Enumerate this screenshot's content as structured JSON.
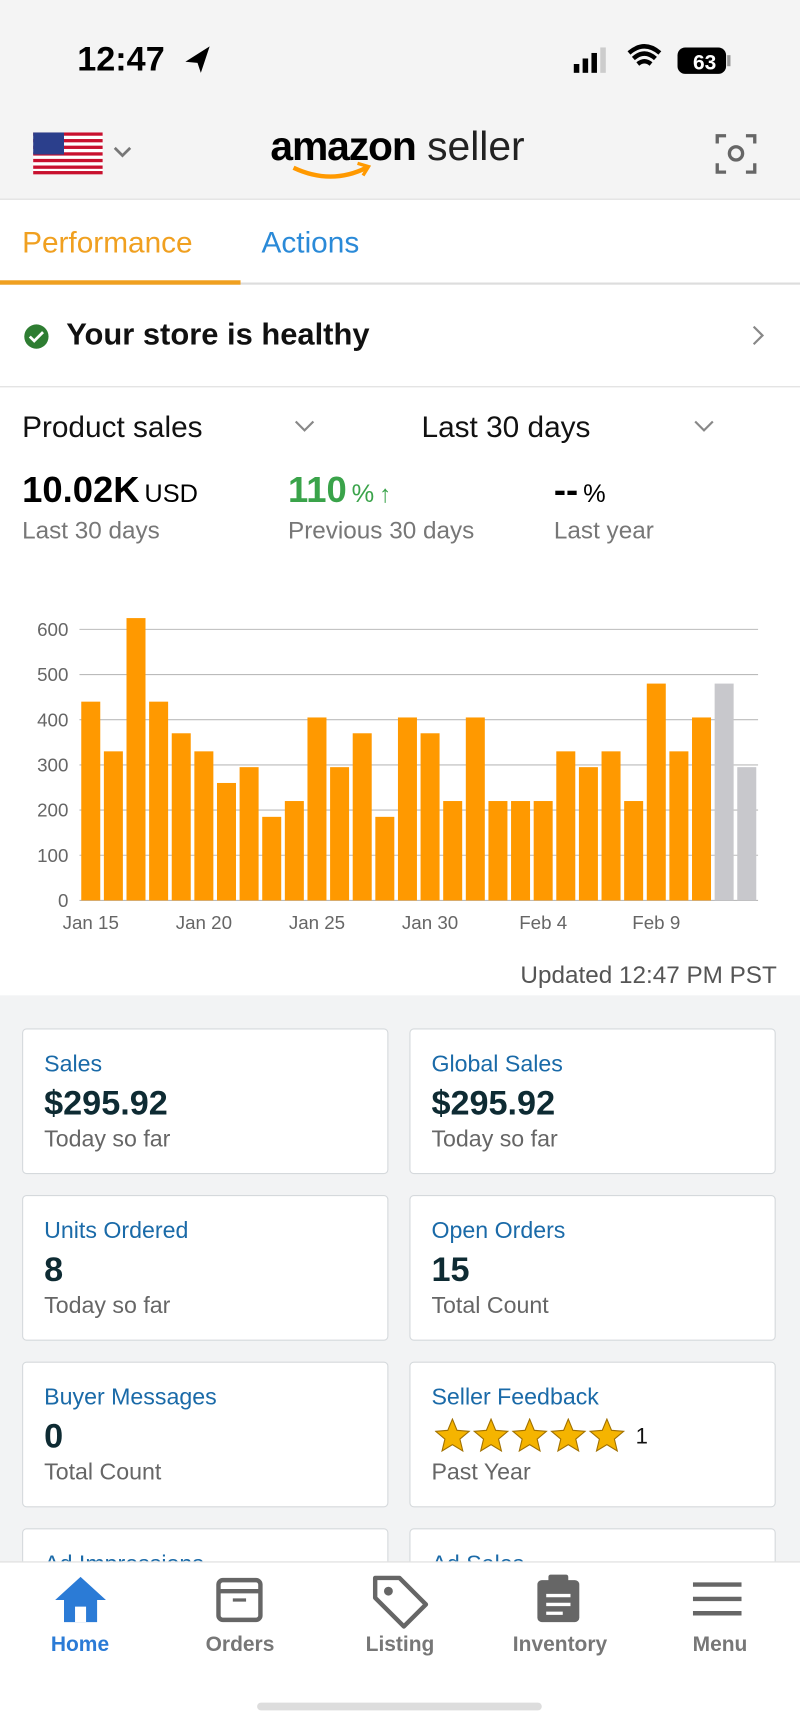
{
  "status_bar": {
    "time": "12:47",
    "battery": "63"
  },
  "header": {
    "logo": "amazon",
    "logo_suffix": "seller"
  },
  "tabs": [
    "Performance",
    "Actions"
  ],
  "health": "Your store is healthy",
  "filters": {
    "metric": "Product sales",
    "period": "Last 30 days"
  },
  "stats": [
    {
      "value": "10.02K",
      "unit": "USD",
      "label": "Last 30 days"
    },
    {
      "value": "110",
      "unit": "%",
      "label": "Previous 30 days"
    },
    {
      "value": "--",
      "unit": "%",
      "label": "Last year"
    }
  ],
  "chart_data": {
    "type": "bar",
    "categories": [
      "Jan 15",
      null,
      null,
      null,
      null,
      "Jan 20",
      null,
      null,
      null,
      null,
      "Jan 25",
      null,
      null,
      null,
      null,
      "Jan 30",
      null,
      null,
      null,
      null,
      "Feb 4",
      null,
      null,
      null,
      null,
      "Feb 9",
      null,
      null,
      null,
      null
    ],
    "values": [
      440,
      330,
      625,
      440,
      370,
      330,
      260,
      295,
      185,
      220,
      405,
      295,
      370,
      185,
      405,
      370,
      220,
      405,
      220,
      220,
      220,
      330,
      295,
      330,
      220,
      480,
      330,
      405,
      480,
      295
    ],
    "colors": [
      "#ff9900",
      "#ff9900",
      "#ff9900",
      "#ff9900",
      "#ff9900",
      "#ff9900",
      "#ff9900",
      "#ff9900",
      "#ff9900",
      "#ff9900",
      "#ff9900",
      "#ff9900",
      "#ff9900",
      "#ff9900",
      "#ff9900",
      "#ff9900",
      "#ff9900",
      "#ff9900",
      "#ff9900",
      "#ff9900",
      "#ff9900",
      "#ff9900",
      "#ff9900",
      "#ff9900",
      "#ff9900",
      "#ff9900",
      "#ff9900",
      "#ff9900",
      "#c8c8cc",
      "#c8c8cc"
    ],
    "ylim": [
      0,
      640
    ],
    "yticks": [
      0,
      100,
      200,
      300,
      400,
      500,
      600
    ],
    "grid": true
  },
  "updated": "Updated 12:47 PM PST",
  "cards": [
    {
      "title": "Sales",
      "value": "$295.92",
      "note": "Today so far"
    },
    {
      "title": "Global Sales",
      "value": "$295.92",
      "note": "Today so far"
    },
    {
      "title": "Units Ordered",
      "value": "8",
      "note": "Today so far"
    },
    {
      "title": "Open Orders",
      "value": "15",
      "note": "Total Count"
    },
    {
      "title": "Buyer Messages",
      "value": "0",
      "note": "Total Count"
    },
    {
      "title": "Seller Feedback",
      "stars": 5,
      "value": "1",
      "note": "Past Year"
    },
    {
      "title": "Ad Impressions"
    },
    {
      "title": "Ad Sales"
    }
  ],
  "nav": [
    "Home",
    "Orders",
    "Listing",
    "Inventory",
    "Menu"
  ]
}
